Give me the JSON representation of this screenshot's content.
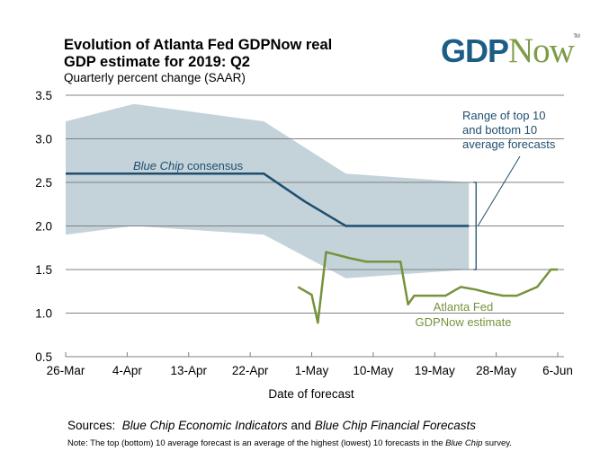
{
  "header": {
    "title_line1": "Evolution of Atlanta Fed GDPNow real",
    "title_line2": "GDP estimate for 2019: Q2",
    "subtitle": "Quarterly percent change (SAAR)",
    "logo_gdp": "GDP",
    "logo_now": "Now",
    "logo_tm": "TM"
  },
  "footer": {
    "sources_prefix": "Sources:",
    "sources_italic1": "Blue Chip Economic Indicators",
    "sources_and": "and",
    "sources_italic2": "Blue Chip Financial Forecasts",
    "note_prefix": "Note:  The top (bottom) 10 average forecast is an average of the highest (lowest) 10 forecasts in the",
    "note_italic": "Blue Chip",
    "note_suffix": "survey."
  },
  "colors": {
    "band": "#c4d3da",
    "consensus": "#1f4e6e",
    "gdpnow": "#76923c",
    "grid": "#808080",
    "annotation_text": "#1f4e6e",
    "gdpnow_label": "#76923c"
  },
  "chart_data": {
    "type": "line",
    "title": "Evolution of Atlanta Fed GDPNow real GDP estimate for 2019: Q2",
    "subtitle": "Quarterly percent change (SAAR)",
    "xlabel": "Date of forecast",
    "ylabel": "",
    "ylim": [
      0.5,
      3.5
    ],
    "yticks": [
      0.5,
      1.0,
      1.5,
      2.0,
      2.5,
      3.0,
      3.5
    ],
    "ytick_labels": [
      "0.5",
      "1.0",
      "1.5",
      "2.0",
      "2.5",
      "3.0",
      "3.5"
    ],
    "xlim_days": [
      0,
      72
    ],
    "x_origin": "26-Mar",
    "xtick_days": [
      0,
      9,
      18,
      27,
      36,
      45,
      54,
      63,
      72
    ],
    "xtick_labels": [
      "26-Mar",
      "4-Apr",
      "13-Apr",
      "22-Apr",
      "1-May",
      "10-May",
      "19-May",
      "28-May",
      "6-Jun"
    ],
    "grid": true,
    "band": {
      "name": "Range of top 10 and bottom 10 average forecasts",
      "days": [
        0,
        10,
        29,
        41,
        59
      ],
      "upper": [
        3.2,
        3.4,
        3.2,
        2.6,
        2.5
      ],
      "lower": [
        1.9,
        2.0,
        1.9,
        1.4,
        1.5
      ]
    },
    "series": [
      {
        "name": "Blue Chip consensus",
        "days": [
          0,
          29,
          35,
          41,
          59
        ],
        "values": [
          2.6,
          2.6,
          2.28,
          2.0,
          2.0
        ]
      },
      {
        "name": "Atlanta Fed GDPNow estimate",
        "days": [
          34,
          36,
          36.9,
          38.1,
          41.6,
          44,
          49,
          50.1,
          51,
          55.6,
          57.8,
          60,
          62,
          64,
          66,
          69,
          71,
          72
        ],
        "values": [
          1.3,
          1.21,
          0.89,
          1.7,
          1.63,
          1.59,
          1.59,
          1.1,
          1.2,
          1.2,
          1.3,
          1.27,
          1.23,
          1.2,
          1.2,
          1.3,
          1.5,
          1.5
        ]
      }
    ],
    "annotations": {
      "range_label": [
        "Range of top 10",
        "and bottom 10",
        "average forecasts"
      ],
      "consensus_label_italic": "Blue Chip",
      "consensus_label_rest": " consensus",
      "gdpnow_label": [
        "Atlanta Fed",
        "GDPNow estimate"
      ]
    }
  }
}
